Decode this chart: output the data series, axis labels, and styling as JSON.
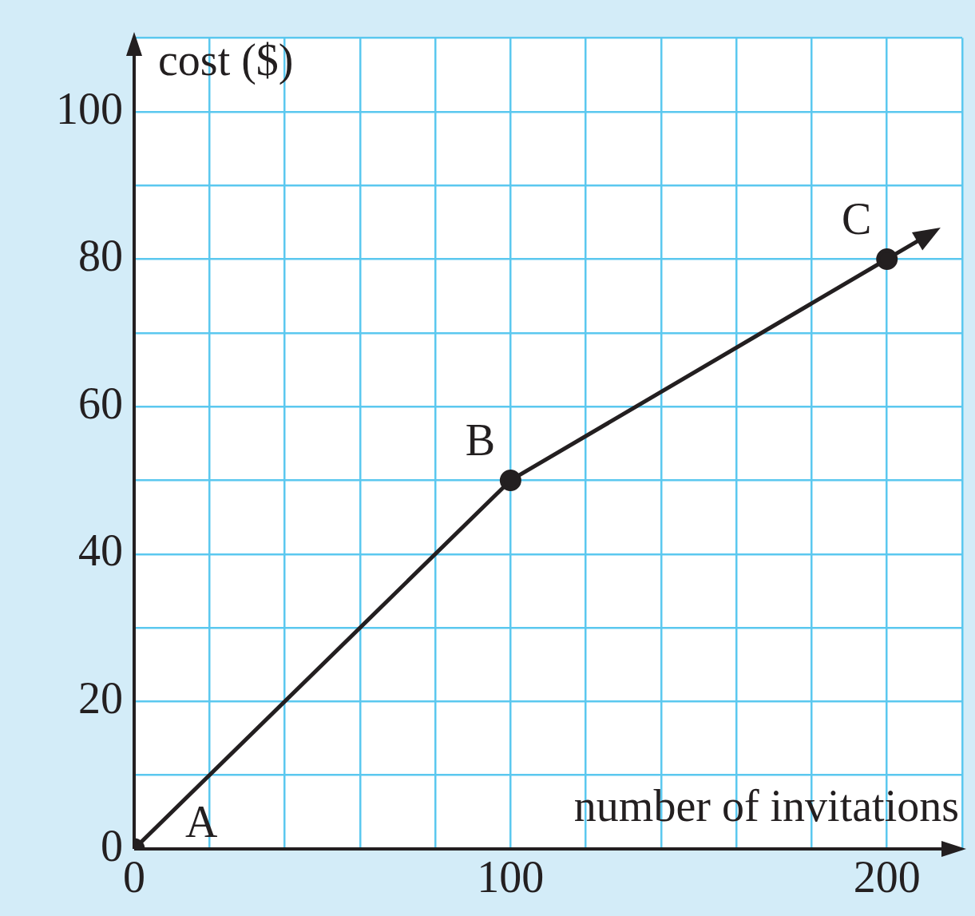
{
  "chart_data": {
    "type": "line",
    "xlabel": "number of invitations",
    "ylabel": "cost ($)",
    "x": [
      0,
      100,
      200
    ],
    "series": [
      {
        "color": "#231f20",
        "values": [
          0,
          50,
          80
        ]
      }
    ],
    "xlim": [
      0,
      220
    ],
    "ylim": [
      0,
      110
    ],
    "xticks": [
      0,
      {
        "value": 20,
        "label": null
      },
      {
        "value": 40,
        "label": null
      },
      {
        "value": 60,
        "label": null
      },
      {
        "value": 80,
        "label": null
      },
      100,
      {
        "value": 120,
        "label": null
      },
      {
        "value": 140,
        "label": null
      },
      {
        "value": 160,
        "label": null
      },
      {
        "value": 180,
        "label": null
      },
      200,
      {
        "value": 220,
        "label": null
      }
    ],
    "yticks": [
      0,
      {
        "value": 10,
        "label": null
      },
      20,
      {
        "value": 30,
        "label": null
      },
      40,
      {
        "value": 50,
        "label": null
      },
      60,
      {
        "value": 70,
        "label": null
      },
      80,
      {
        "value": 90,
        "label": null
      },
      100,
      {
        "value": 110,
        "label": null
      }
    ],
    "grid": true,
    "marker": "circle",
    "line_style": "solid",
    "legend": false,
    "annotations": [
      {
        "text": "A",
        "x": 0,
        "y": 0
      },
      {
        "text": "B",
        "x": 100,
        "y": 50
      },
      {
        "text": "C",
        "x": 200,
        "y": 80
      }
    ]
  }
}
